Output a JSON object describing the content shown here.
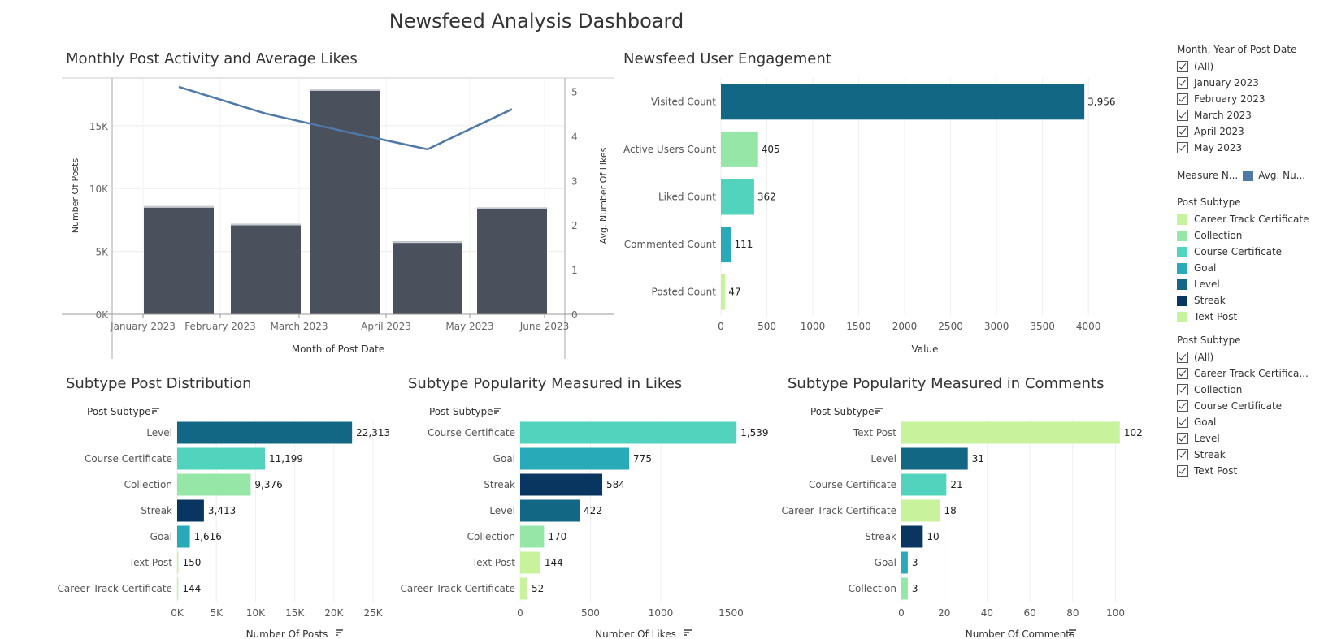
{
  "dashboard_title": "Newsfeed Analysis Dashboard",
  "colors": {
    "bar_dark": "#4a505c",
    "line": "#4e79a7",
    "Career Track Certificate": "#c8f29b",
    "Collection": "#96e6a8",
    "Course Certificate": "#52d3bd",
    "Goal": "#28aab8",
    "Level": "#126785",
    "Streak": "#083660",
    "Text Post": "#c8f29b"
  },
  "chart_data": [
    {
      "id": "monthly",
      "type": "bar",
      "title": "Monthly Post Activity and Average Likes",
      "xlabel": "Month of Post Date",
      "ylabel": "Number Of Posts",
      "y2label": "Avg. Number Of Likes",
      "x_ticks": [
        "January 2023",
        "February 2023",
        "March 2023",
        "April 2023",
        "May 2023",
        "June 2023"
      ],
      "y_ticks": [
        "0K",
        "5K",
        "10K",
        "15K"
      ],
      "y2_ticks": [
        "0",
        "1",
        "2",
        "3",
        "4",
        "5"
      ],
      "ylim": [
        0,
        18800
      ],
      "y2lim": [
        0,
        5.3
      ],
      "series": [
        {
          "type": "bar",
          "values": [
            8600,
            7200,
            17900,
            5800,
            8500
          ]
        },
        {
          "type": "line",
          "values": [
            5.1,
            4.5,
            4.1,
            3.7,
            4.6
          ]
        }
      ]
    },
    {
      "id": "engagement",
      "type": "bar",
      "title": "Newsfeed User Engagement",
      "xlabel": "Value",
      "categories": [
        "Visited Count",
        "Active Users Count",
        "Liked Count",
        "Commented Count",
        "Posted Count"
      ],
      "values": [
        3956,
        405,
        362,
        111,
        47
      ],
      "labels": [
        "3,956",
        "405",
        "362",
        "111",
        "47"
      ],
      "colors": [
        "#126785",
        "#96e6a8",
        "#52d3bd",
        "#28aab8",
        "#c8f29b"
      ],
      "x_ticks": [
        "0",
        "500",
        "1000",
        "1500",
        "2000",
        "2500",
        "3000",
        "3500",
        "4000"
      ],
      "xlim": [
        0,
        4450
      ]
    },
    {
      "id": "distribution",
      "type": "bar",
      "title": "Subtype Post Distribution",
      "category_header": "Post Subtype",
      "xlabel": "Number Of Posts",
      "categories": [
        "Level",
        "Course Certificate",
        "Collection",
        "Streak",
        "Goal",
        "Text Post",
        "Career Track Certificate"
      ],
      "values": [
        22313,
        11199,
        9376,
        3413,
        1616,
        150,
        144
      ],
      "labels": [
        "22,313",
        "11,199",
        "9,376",
        "3,413",
        "1,616",
        "150",
        "144"
      ],
      "x_ticks": [
        "0K",
        "5K",
        "10K",
        "15K",
        "20K",
        "25K"
      ],
      "xlim": [
        0,
        28000
      ]
    },
    {
      "id": "likes",
      "type": "bar",
      "title": "Subtype Popularity Measured in Likes",
      "category_header": "Post Subtype",
      "xlabel": "Number Of Likes",
      "categories": [
        "Course Certificate",
        "Goal",
        "Streak",
        "Level",
        "Collection",
        "Text Post",
        "Career Track Certificate"
      ],
      "values": [
        1539,
        775,
        584,
        422,
        170,
        144,
        52
      ],
      "labels": [
        "1,539",
        "775",
        "584",
        "422",
        "170",
        "144",
        "52"
      ],
      "x_ticks": [
        "0",
        "500",
        "1000",
        "1500"
      ],
      "xlim": [
        0,
        1850
      ]
    },
    {
      "id": "comments",
      "type": "bar",
      "title": "Subtype Popularity Measured in Comments",
      "category_header": "Post Subtype",
      "xlabel": "Number Of Comments",
      "categories": [
        "Text Post",
        "Level",
        "Course Certificate",
        "Career Track Certificate",
        "Streak",
        "Goal",
        "Collection"
      ],
      "values": [
        102,
        31,
        21,
        18,
        10,
        3,
        3
      ],
      "labels": [
        "102",
        "31",
        "21",
        "18",
        "10",
        "3",
        "3"
      ],
      "x_ticks": [
        "0",
        "20",
        "40",
        "60",
        "80",
        "100"
      ],
      "xlim": [
        0,
        118
      ]
    }
  ],
  "sidebar": {
    "month_filter": {
      "title": "Month, Year of Post Date",
      "items": [
        "(All)",
        "January 2023",
        "February 2023",
        "March 2023",
        "April 2023",
        "May 2023"
      ]
    },
    "measure_legend": {
      "title": "Measure N...",
      "item": "Avg. Nu..."
    },
    "subtype_legend": {
      "title": "Post Subtype",
      "items": [
        "Career Track Certificate",
        "Collection",
        "Course Certificate",
        "Goal",
        "Level",
        "Streak",
        "Text Post"
      ]
    },
    "subtype_filter": {
      "title": "Post Subtype",
      "items": [
        "(All)",
        "Career Track Certifica...",
        "Collection",
        "Course Certificate",
        "Goal",
        "Level",
        "Streak",
        "Text Post"
      ]
    }
  }
}
